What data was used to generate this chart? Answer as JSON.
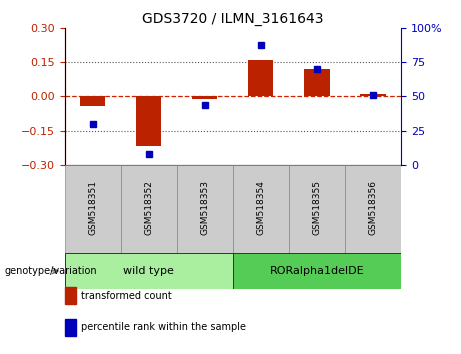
{
  "title": "GDS3720 / ILMN_3161643",
  "samples": [
    "GSM518351",
    "GSM518352",
    "GSM518353",
    "GSM518354",
    "GSM518355",
    "GSM518356"
  ],
  "transformed_count": [
    -0.04,
    -0.22,
    -0.01,
    0.16,
    0.12,
    0.01
  ],
  "percentile_rank": [
    30,
    8,
    44,
    88,
    70,
    51
  ],
  "ylim_left": [
    -0.3,
    0.3
  ],
  "ylim_right": [
    0,
    100
  ],
  "yticks_left": [
    -0.3,
    -0.15,
    0,
    0.15,
    0.3
  ],
  "yticks_right": [
    0,
    25,
    50,
    75,
    100
  ],
  "bar_color": "#BB2200",
  "dot_color": "#0000BB",
  "hline_color": "#CC2200",
  "dotted_line_color": "#555555",
  "groups": [
    {
      "label": "wild type",
      "samples": [
        0,
        1,
        2
      ],
      "color": "#AAEEA0"
    },
    {
      "label": "RORalpha1delDE",
      "samples": [
        3,
        4,
        5
      ],
      "color": "#55CC55"
    }
  ],
  "genotype_label": "genotype/variation",
  "legend_items": [
    {
      "label": "transformed count",
      "color": "#BB2200"
    },
    {
      "label": "percentile rank within the sample",
      "color": "#0000BB"
    }
  ],
  "tick_box_color": "#CCCCCC",
  "figsize": [
    4.61,
    3.54
  ],
  "dpi": 100
}
